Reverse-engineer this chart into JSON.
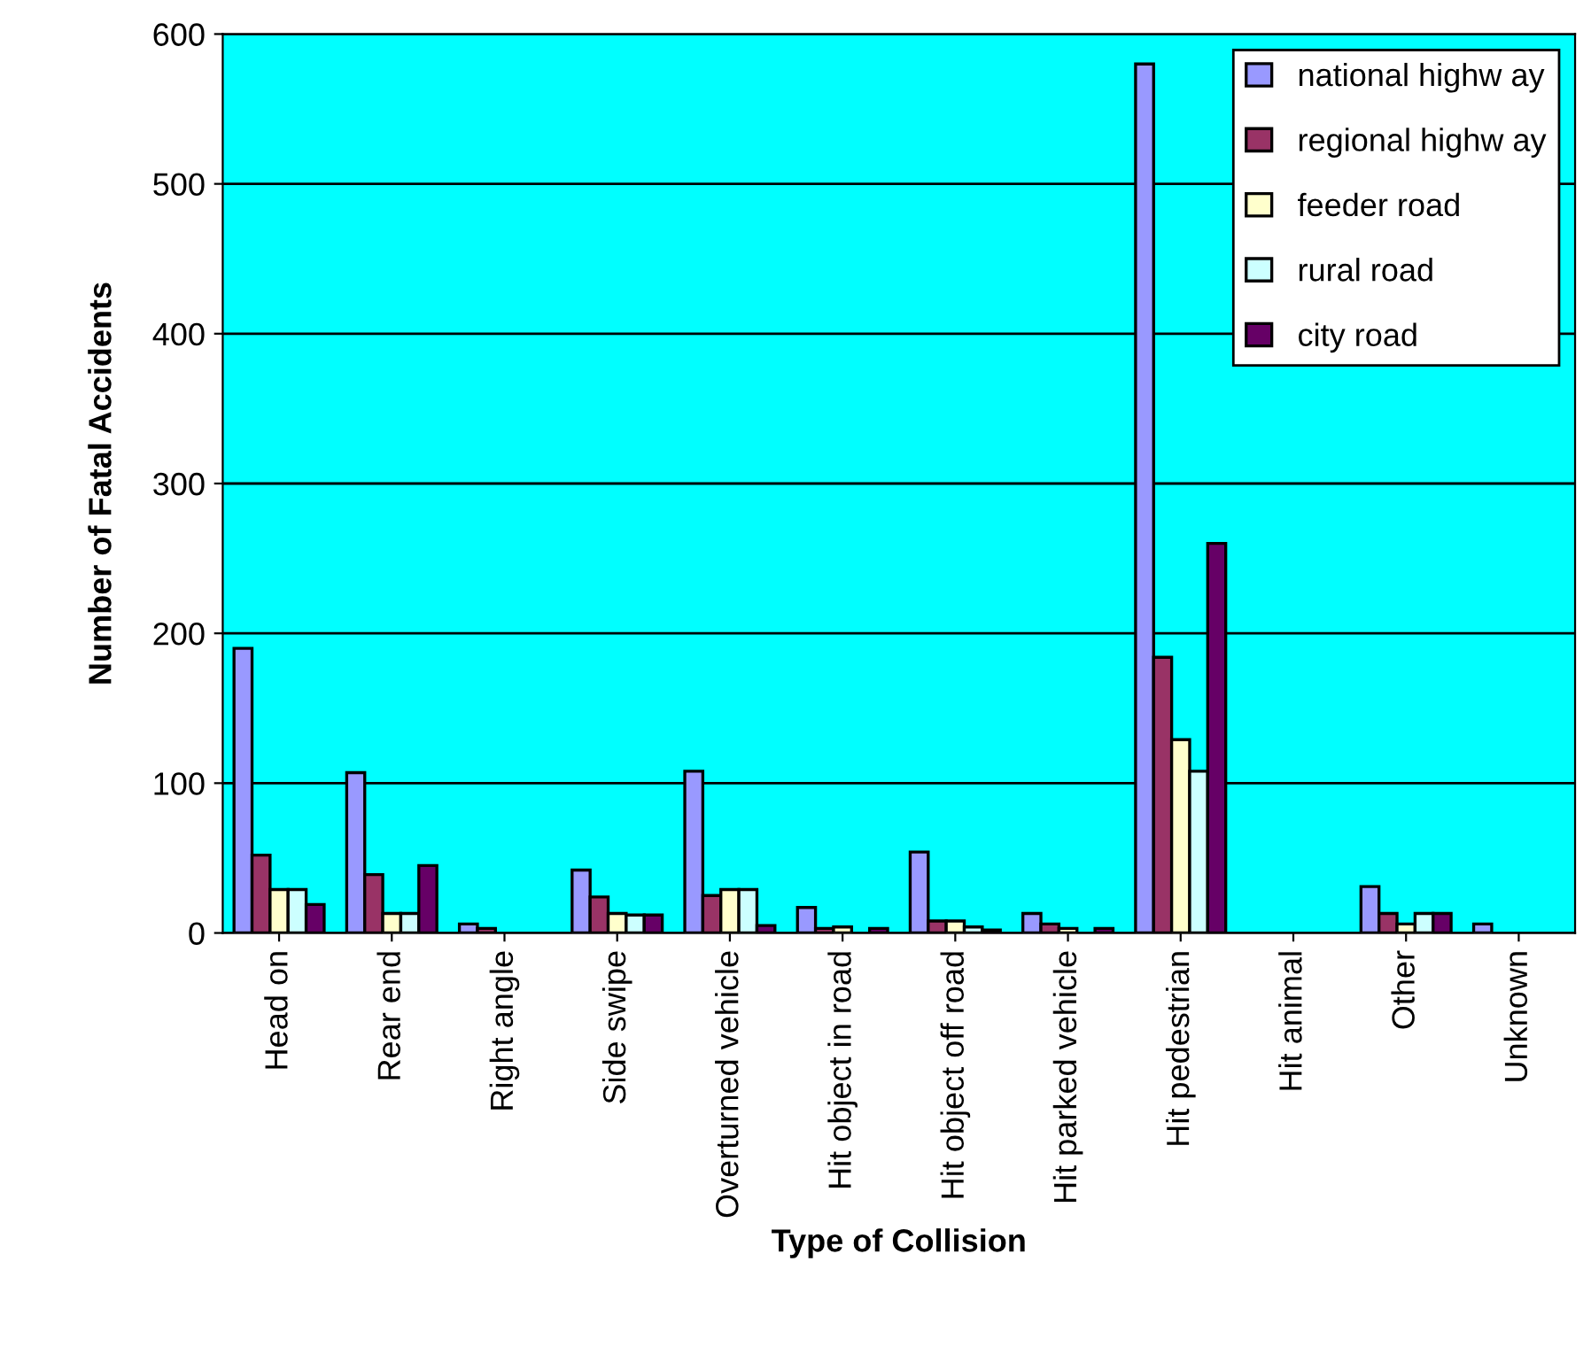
{
  "chart_data": {
    "type": "bar",
    "xlabel": "Type of Collision",
    "ylabel": "Number of Fatal Accidents",
    "categories": [
      "Head on",
      "Rear end",
      "Right angle",
      "Side swipe",
      "Overturned vehicle",
      "Hit object in road",
      "Hit object off road",
      "Hit parked vehicle",
      "Hit pedestrian",
      "Hit animal",
      "Other",
      "Unknown"
    ],
    "series": [
      {
        "name": "national highw ay",
        "color": "#9999ff",
        "values": [
          190,
          107,
          6,
          42,
          108,
          17,
          54,
          13,
          580,
          null,
          31,
          6
        ]
      },
      {
        "name": "regional highw ay",
        "color": "#993366",
        "values": [
          52,
          39,
          3,
          24,
          25,
          3,
          8,
          6,
          184,
          null,
          13,
          null
        ]
      },
      {
        "name": "feeder road",
        "color": "#ffffcc",
        "values": [
          29,
          13,
          null,
          13,
          29,
          4,
          8,
          3,
          129,
          null,
          6,
          null
        ]
      },
      {
        "name": "rural road",
        "color": "#ccffff",
        "values": [
          29,
          13,
          null,
          12,
          29,
          null,
          4,
          null,
          108,
          null,
          13,
          null
        ]
      },
      {
        "name": "city road",
        "color": "#660066",
        "values": [
          19,
          45,
          null,
          12,
          5,
          3,
          2,
          3,
          260,
          null,
          13,
          null
        ]
      }
    ],
    "ylim": [
      0,
      600
    ],
    "yticks": [
      0,
      100,
      200,
      300,
      400,
      500,
      600
    ],
    "grid": "y",
    "legend": "top right"
  }
}
